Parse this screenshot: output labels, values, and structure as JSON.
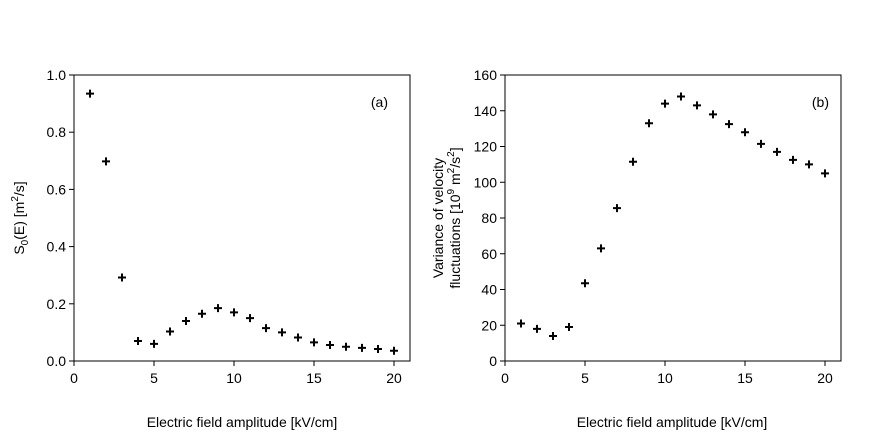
{
  "chart_data": [
    {
      "type": "scatter",
      "panel_label": "(a)",
      "title": "",
      "xlabel": "Electric field amplitude [kV/cm]",
      "ylabel": "S(E) [m/s]",
      "ylabel_parts": {
        "main": "S",
        "sub": "0",
        "mid": "(E) [m",
        "sup": "2",
        "end": "/s]"
      },
      "xlim": [
        0,
        21
      ],
      "ylim": [
        0,
        1.0
      ],
      "xticks": [
        0,
        5,
        10,
        15,
        20
      ],
      "xtick_labels": [
        "0",
        "5",
        "10",
        "15",
        "20"
      ],
      "yticks": [
        0,
        0.2,
        0.4,
        0.6,
        0.8,
        1.0
      ],
      "ytick_labels": [
        "0.0",
        "0.2",
        "0.4",
        "0.6",
        "0.8",
        "1.0"
      ],
      "marker": "+",
      "grid": false,
      "x": [
        1,
        2,
        3,
        4,
        5,
        6,
        7,
        8,
        9,
        10,
        11,
        12,
        13,
        14,
        15,
        16,
        17,
        18,
        19,
        20
      ],
      "y": [
        0.935,
        0.698,
        0.292,
        0.07,
        0.06,
        0.103,
        0.14,
        0.165,
        0.185,
        0.17,
        0.15,
        0.115,
        0.1,
        0.082,
        0.065,
        0.056,
        0.05,
        0.046,
        0.042,
        0.036
      ]
    },
    {
      "type": "scatter",
      "panel_label": "(b)",
      "title": "",
      "xlabel": "Electric field amplitude [kV/cm]",
      "ylabel": "Variance of velocity fluctuations [10 m/s]",
      "ylabel_line1": "Variance of velocity",
      "ylabel_line2_parts": {
        "pre": "fluctuations [10",
        "sup1": "9",
        "mid": " m",
        "sup2": "2",
        "mid2": "/s",
        "sup3": "2",
        "end": "]"
      },
      "xlim": [
        0,
        21
      ],
      "ylim": [
        0,
        160
      ],
      "xticks": [
        0,
        5,
        10,
        15,
        20
      ],
      "xtick_labels": [
        "0",
        "5",
        "10",
        "15",
        "20"
      ],
      "yticks": [
        0,
        20,
        40,
        60,
        80,
        100,
        120,
        140,
        160
      ],
      "ytick_labels": [
        "0",
        "20",
        "40",
        "60",
        "80",
        "100",
        "120",
        "140",
        "160"
      ],
      "marker": "+",
      "grid": false,
      "x": [
        1,
        2,
        3,
        4,
        5,
        6,
        7,
        8,
        9,
        10,
        11,
        12,
        13,
        14,
        15,
        16,
        17,
        18,
        19,
        20
      ],
      "y": [
        21,
        18,
        14,
        19,
        43.5,
        63,
        85.5,
        111.5,
        133,
        144,
        148,
        143,
        138,
        132.5,
        128,
        121.5,
        117,
        112.5,
        110,
        105
      ]
    }
  ]
}
